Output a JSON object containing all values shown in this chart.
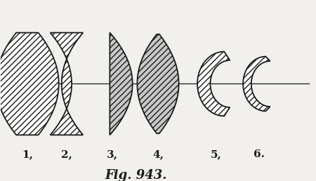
{
  "figure_label": "Fig. 943.",
  "lens_labels": [
    "1,",
    "2,",
    "3,",
    "4,",
    "5,",
    "6."
  ],
  "background_color": "#f2f0ec",
  "line_color": "#1a1a1a",
  "hatch_pattern": "////",
  "label_fontsize": 11,
  "fig_label_fontsize": 13,
  "fig_width": 4.5,
  "fig_height": 2.58,
  "dpi": 100
}
